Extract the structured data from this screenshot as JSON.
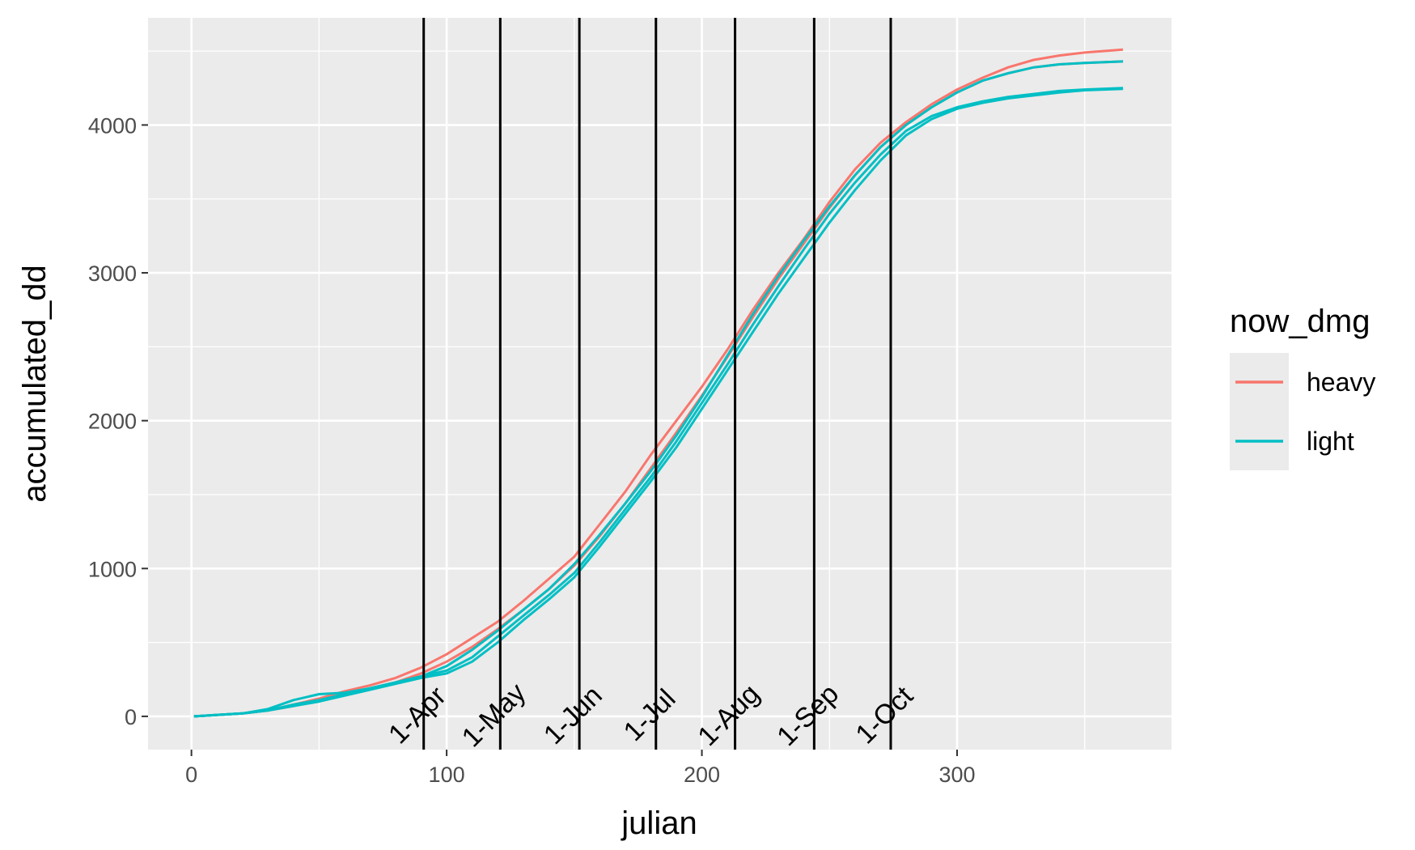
{
  "chart_data": {
    "type": "line",
    "xlabel": "julian",
    "ylabel": "accumulated_dd",
    "xlim": [
      -17,
      384
    ],
    "ylim": [
      -225,
      4725
    ],
    "x_ticks": [
      0,
      100,
      200,
      300
    ],
    "x_tick_labels": [
      "0",
      "100",
      "200",
      "300"
    ],
    "y_ticks": [
      0,
      1000,
      2000,
      3000,
      4000
    ],
    "y_tick_labels": [
      "0",
      "1000",
      "2000",
      "3000",
      "4000"
    ],
    "grid": true,
    "legend": {
      "title": "now_dmg",
      "placement": "right",
      "entries": [
        {
          "label": "heavy",
          "color": "#F8766D"
        },
        {
          "label": "light",
          "color": "#00BFC4"
        }
      ]
    },
    "vlines": [
      {
        "x": 91,
        "label": "1-Apr"
      },
      {
        "x": 121,
        "label": "1-May"
      },
      {
        "x": 152,
        "label": "1-Jun"
      },
      {
        "x": 182,
        "label": "1-Jul"
      },
      {
        "x": 213,
        "label": "1-Aug"
      },
      {
        "x": 244,
        "label": "1-Sep"
      },
      {
        "x": 274,
        "label": "1-Oct"
      }
    ],
    "series": [
      {
        "group": "heavy",
        "color": "#F8766D",
        "x": [
          1,
          20,
          30,
          40,
          50,
          60,
          70,
          80,
          90,
          100,
          110,
          120,
          130,
          140,
          150,
          160,
          170,
          180,
          190,
          200,
          210,
          220,
          230,
          240,
          250,
          260,
          270,
          280,
          290,
          300,
          310,
          320,
          330,
          340,
          350,
          365
        ],
        "y": [
          0,
          20,
          40,
          80,
          120,
          170,
          210,
          260,
          330,
          420,
          530,
          640,
          780,
          930,
          1080,
          1300,
          1520,
          1770,
          2000,
          2230,
          2480,
          2750,
          3000,
          3230,
          3480,
          3700,
          3880,
          4020,
          4140,
          4240,
          4320,
          4390,
          4440,
          4470,
          4490,
          4510
        ]
      },
      {
        "group": "heavy",
        "color": "#F8766D",
        "x": [
          1,
          20,
          30,
          40,
          50,
          60,
          70,
          80,
          90,
          100,
          110,
          120,
          130,
          140,
          150,
          160,
          170,
          180,
          190,
          200,
          210,
          220,
          230,
          240,
          250,
          260,
          270,
          280,
          290,
          300,
          310,
          320,
          330,
          340,
          350,
          365
        ],
        "y": [
          0,
          20,
          40,
          70,
          110,
          150,
          190,
          230,
          290,
          370,
          470,
          590,
          720,
          860,
          1020,
          1220,
          1440,
          1680,
          1920,
          2170,
          2430,
          2700,
          2960,
          3200,
          3440,
          3660,
          3850,
          4000,
          4120,
          4220,
          4300,
          4350,
          4390,
          4410,
          4420,
          4430
        ]
      },
      {
        "group": "light",
        "color": "#00BFC4",
        "x": [
          1,
          20,
          30,
          40,
          50,
          60,
          70,
          80,
          90,
          100,
          110,
          120,
          130,
          140,
          150,
          160,
          170,
          180,
          190,
          200,
          210,
          220,
          230,
          240,
          250,
          260,
          270,
          280,
          290,
          300,
          310,
          320,
          330,
          340,
          350,
          365
        ],
        "y": [
          0,
          20,
          50,
          110,
          150,
          160,
          190,
          230,
          270,
          340,
          450,
          580,
          720,
          860,
          1030,
          1230,
          1440,
          1660,
          1900,
          2160,
          2440,
          2720,
          2980,
          3220,
          3450,
          3660,
          3850,
          4000,
          4120,
          4220,
          4300,
          4350,
          4390,
          4410,
          4420,
          4430
        ]
      },
      {
        "group": "light",
        "color": "#00BFC4",
        "x": [
          1,
          20,
          30,
          40,
          50,
          60,
          70,
          80,
          90,
          100,
          110,
          120,
          130,
          140,
          150,
          160,
          170,
          180,
          190,
          200,
          210,
          220,
          230,
          240,
          250,
          260,
          270,
          280,
          290,
          300,
          310,
          320,
          330,
          340,
          350,
          365
        ],
        "y": [
          0,
          20,
          40,
          80,
          110,
          150,
          190,
          230,
          270,
          310,
          400,
          540,
          680,
          820,
          970,
          1180,
          1400,
          1620,
          1860,
          2120,
          2380,
          2650,
          2910,
          3160,
          3400,
          3610,
          3800,
          3960,
          4060,
          4120,
          4160,
          4190,
          4210,
          4230,
          4240,
          4250
        ]
      },
      {
        "group": "light",
        "color": "#00BFC4",
        "x": [
          1,
          20,
          30,
          40,
          50,
          60,
          70,
          80,
          90,
          100,
          110,
          120,
          130,
          140,
          150,
          160,
          170,
          180,
          190,
          200,
          210,
          220,
          230,
          240,
          250,
          260,
          270,
          280,
          290,
          300,
          310,
          320,
          330,
          340,
          350,
          365
        ],
        "y": [
          0,
          20,
          40,
          70,
          100,
          140,
          180,
          220,
          260,
          290,
          370,
          500,
          650,
          790,
          940,
          1150,
          1370,
          1590,
          1820,
          2080,
          2340,
          2600,
          2860,
          3100,
          3340,
          3560,
          3760,
          3930,
          4040,
          4110,
          4150,
          4180,
          4200,
          4220,
          4235,
          4245
        ]
      }
    ]
  }
}
